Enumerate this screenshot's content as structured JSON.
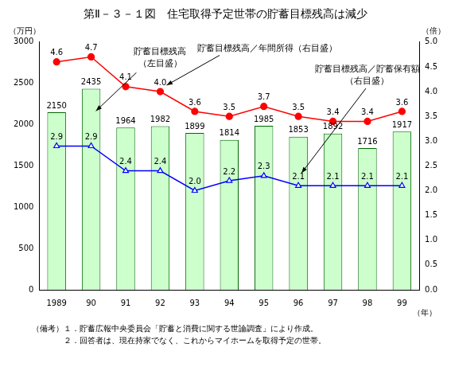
{
  "chart_data": {
    "type": "bar",
    "title": "第Ⅱ－３－１図　住宅取得予定世帯の貯蓄目標残高は減少",
    "categories": [
      "1989",
      "90",
      "91",
      "92",
      "93",
      "94",
      "95",
      "96",
      "97",
      "98",
      "99"
    ],
    "series": [
      {
        "name": "貯蓄目標残高",
        "type": "bar",
        "color": "#ccffcc",
        "axis": "y",
        "values": [
          2150,
          2435,
          1964,
          1982,
          1899,
          1814,
          1985,
          1853,
          1892,
          1716,
          1917
        ]
      },
      {
        "name": "貯蓄目標残高／年間所得",
        "type": "line",
        "color": "#ff0000",
        "marker": "circle",
        "axis": "y2",
        "values": [
          4.6,
          4.7,
          4.1,
          4.0,
          3.6,
          3.5,
          3.7,
          3.5,
          3.4,
          3.4,
          3.6
        ],
        "value_labels": [
          "4.6",
          "4.7",
          "4.1",
          "4.0",
          "3.6",
          "3.5",
          "3.7",
          "3.5",
          "3.4",
          "3.4",
          "3.6"
        ]
      },
      {
        "name": "貯蓄目標残高／貯蓄保有額",
        "type": "line",
        "color": "#0000ff",
        "marker": "triangle",
        "axis": "y2",
        "values": [
          2.9,
          2.9,
          2.4,
          2.4,
          2.0,
          2.2,
          2.3,
          2.1,
          2.1,
          2.1,
          2.1
        ],
        "value_labels": [
          "2.9",
          "2.9",
          "2.4",
          "2.4",
          "2.0",
          "2.2",
          "2.3",
          "2.1",
          "2.1",
          "2.1",
          "2.1"
        ]
      }
    ],
    "ylabel": "（万円）",
    "y2label": "（倍）",
    "xlabel": "（年）",
    "ylim": [
      0,
      3000
    ],
    "yticks": [
      0,
      500,
      1000,
      1500,
      2000,
      2500,
      3000
    ],
    "y2lim": [
      0,
      5
    ],
    "y2ticks": [
      {
        "value": 0,
        "label": "0.0"
      },
      0.5,
      {
        "value": 1,
        "label": "1.0"
      },
      1.5,
      {
        "value": 2,
        "label": "2.0"
      },
      2.5,
      {
        "value": 3,
        "label": "3.0"
      },
      3.5,
      {
        "value": 4,
        "label": "4.0"
      },
      4.5,
      {
        "value": 5,
        "label": "5.0"
      }
    ],
    "grid": false,
    "data_labels": true,
    "annotations": [
      {
        "text": [
          "貯蓄目標残高",
          "（左目盛）"
        ],
        "series": "貯蓄目標残高"
      },
      {
        "text": [
          "貯蓄目標残高／年間所得（右目盛）"
        ],
        "series": "貯蓄目標残高／年間所得"
      },
      {
        "text": [
          "貯蓄目標残高／貯蓄保有額",
          "（右目盛）"
        ],
        "series": "貯蓄目標残高／貯蓄保有額"
      }
    ],
    "notes": [
      "（備考）１．貯蓄広報中央委員会「貯蓄と消費に関する世論調査」により作成。",
      "２．回答者は、現在持家でなく、これからマイホームを取得予定の世帯。"
    ]
  }
}
